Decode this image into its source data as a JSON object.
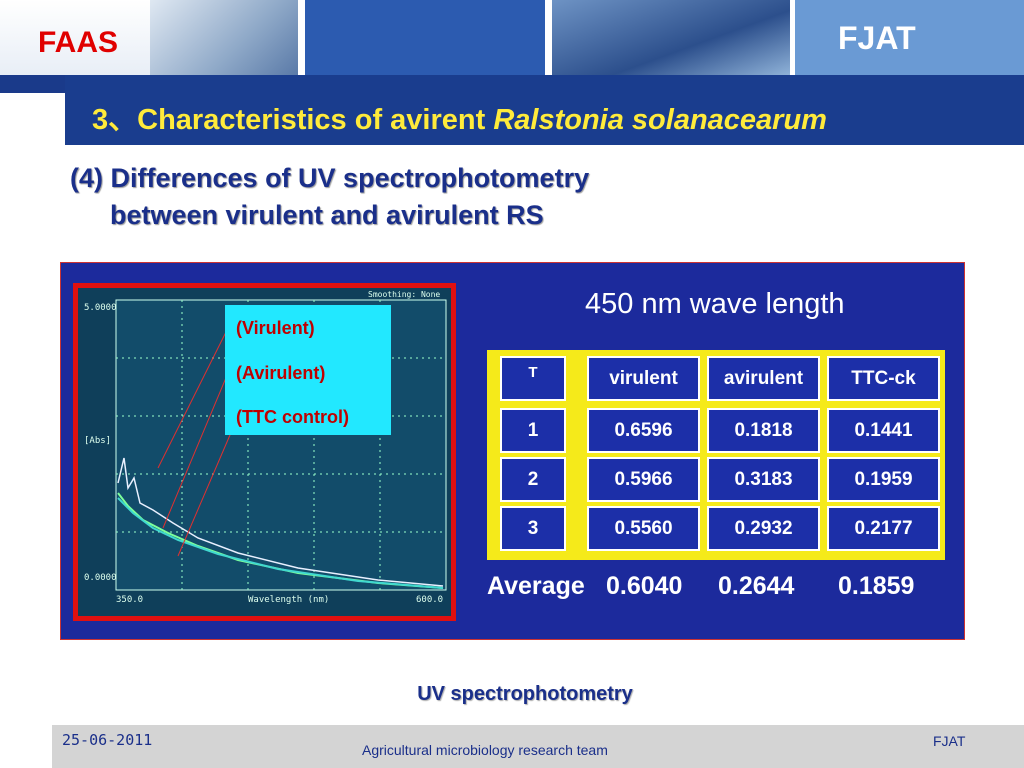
{
  "header": {
    "left_logo": "FAAS",
    "right_logo": "FJAT"
  },
  "title": {
    "text": "3、Characteristics of avirent ",
    "italic": "Ralstonia solanacearum"
  },
  "subtitle": [
    "(4) Differences of UV spectrophotometry",
    "between virulent and avirulent RS"
  ],
  "figure": {
    "scope": {
      "y_top": "5.0000",
      "y_label": "[Abs]",
      "y_bottom": "0.0000",
      "x_left": "350.0",
      "x_label": "Wavelength (nm)",
      "x_right": "600.0",
      "smoothing": "Smoothing: None"
    },
    "legend": [
      "(Virulent)",
      "(Avirulent)",
      "(TTC control)"
    ],
    "heading": "450 nm wave length",
    "table": {
      "header": [
        "T",
        "virulent",
        "avirulent",
        "TTC-ck"
      ],
      "rows": [
        [
          "1",
          "0.6596",
          "0.1818",
          "0.1441"
        ],
        [
          "2",
          "0.5966",
          "0.3183",
          "0.1959"
        ],
        [
          "3",
          "0.5560",
          "0.2932",
          "0.2177"
        ]
      ],
      "average": [
        "Average",
        "0.6040",
        "0.2644",
        "0.1859"
      ]
    }
  },
  "caption": "UV spectrophotometry",
  "footer": {
    "date": "25-06-2011",
    "team": "Agricultural microbiology research team",
    "org": "FJAT"
  }
}
